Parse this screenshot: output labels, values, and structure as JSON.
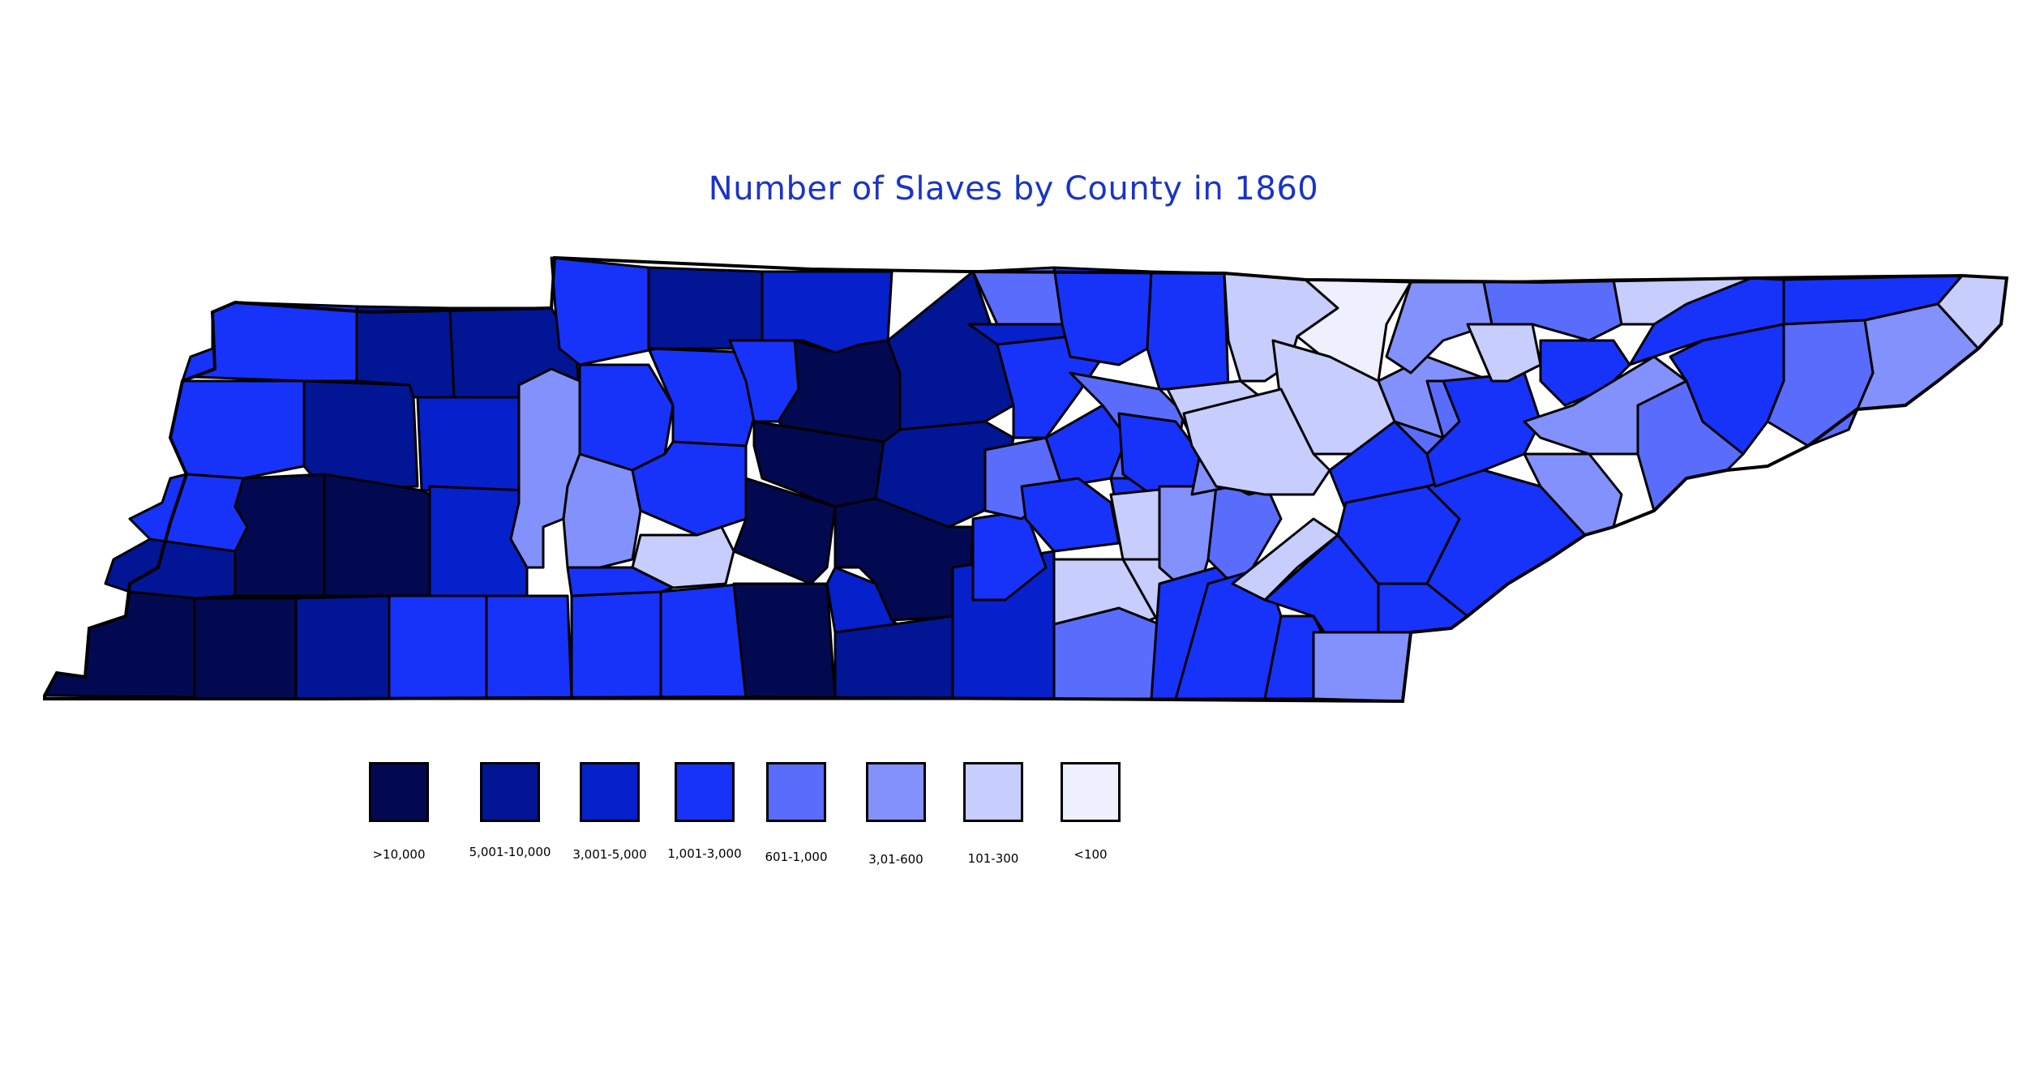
{
  "title": "Number of Slaves by County in 1860",
  "palette": {
    "c1": "#030950",
    "c2": "#021595",
    "c3": "#0620cc",
    "c4": "#1733fa",
    "c5": "#5a6cfb",
    "c6": "#8291fb",
    "c7": "#c7cdfd",
    "c8": "#eef0fe"
  },
  "legend": [
    {
      "label": ">10,000",
      "color": "#030950"
    },
    {
      "label": "5,001-10,000",
      "color": "#021595"
    },
    {
      "label": "3,001-5,000",
      "color": "#0620cc"
    },
    {
      "label": "1,001-3,000",
      "color": "#1733fa"
    },
    {
      "label": "601-1,000",
      "color": "#5a6cfb"
    },
    {
      "label": "3,01-600",
      "color": "#8291fb"
    },
    {
      "label": "101-300",
      "color": "#c7cdfd"
    },
    {
      "label": "<100",
      "color": "#eef0fe"
    }
  ]
}
